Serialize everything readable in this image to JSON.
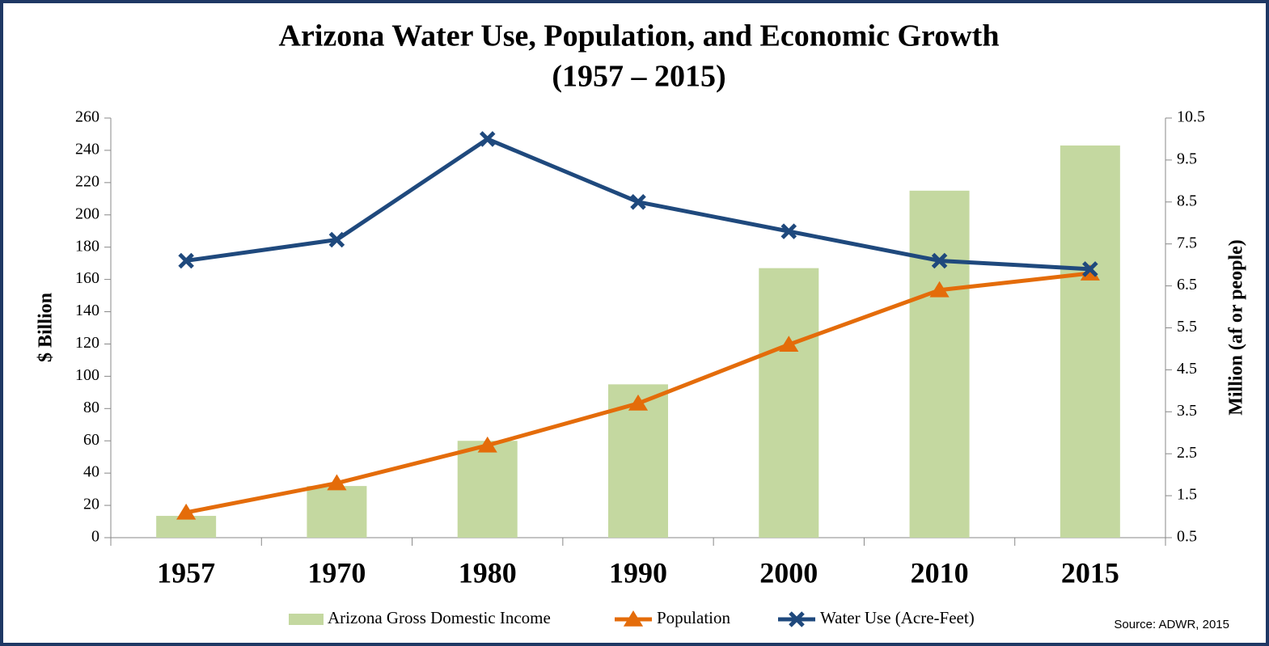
{
  "chart_data": {
    "type": "bar-line",
    "title": [
      "Arizona Water Use, Population, and Economic Growth",
      "(1957 – 2015)"
    ],
    "y_label": "$ Billion",
    "y2_label": "Million (af or people)",
    "source": "Source: ADWR, 2015",
    "categories": [
      "1957",
      "1970",
      "1980",
      "1990",
      "2000",
      "2010",
      "2015"
    ],
    "ylim": [
      0,
      260
    ],
    "yticks": [
      0,
      20,
      40,
      60,
      80,
      100,
      120,
      140,
      160,
      180,
      200,
      220,
      240,
      260
    ],
    "y2lim": [
      0.5,
      10.5
    ],
    "y2ticks": [
      0.5,
      1.5,
      2.5,
      3.5,
      4.5,
      5.5,
      6.5,
      7.5,
      8.5,
      9.5,
      10.5
    ],
    "series": [
      {
        "name": "Arizona Gross Domestic Income",
        "type": "bar",
        "color": "#c4d8a0",
        "values": [
          13.5,
          32,
          60,
          95,
          167,
          215,
          243
        ]
      },
      {
        "name": "Population",
        "type": "line",
        "marker": "triangle",
        "axis": "y2",
        "color": "#e46c0a",
        "values": [
          1.1,
          1.8,
          2.7,
          3.7,
          5.1,
          6.4,
          6.8
        ]
      },
      {
        "name": "Water Use (Acre-Feet)",
        "type": "line",
        "marker": "x",
        "axis": "y2",
        "color": "#1f497d",
        "values": [
          7.1,
          7.6,
          10.0,
          8.5,
          7.8,
          7.1,
          6.9
        ]
      }
    ]
  }
}
